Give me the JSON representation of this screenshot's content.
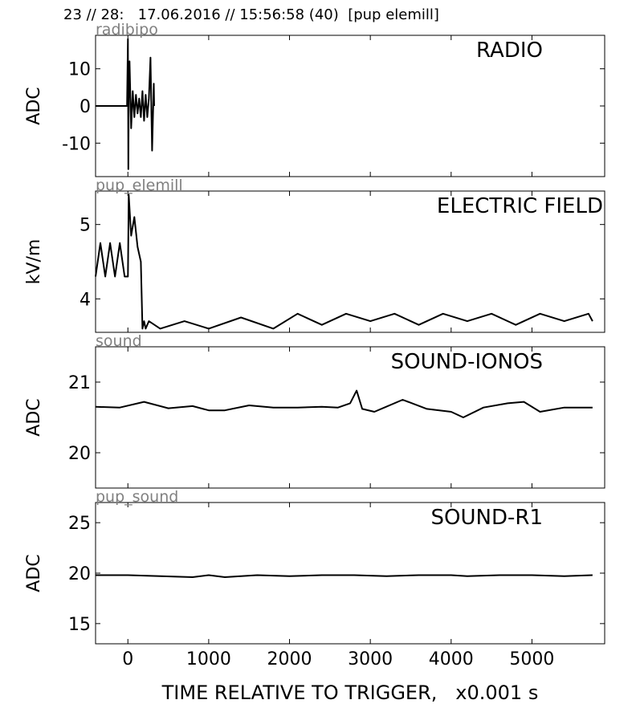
{
  "header": {
    "title": "23 // 28:   17.06.2016 // 15:56:58 (40)  [pup elemill]"
  },
  "chart_data": [
    {
      "type": "line",
      "title": "RADIO",
      "source_label": "radibipo",
      "ylabel": "ADC",
      "ylim": [
        -19,
        19
      ],
      "yticks": [
        -10,
        0,
        10
      ],
      "ytick_labels": [
        "-10",
        "0",
        "10"
      ],
      "series": [
        {
          "x": [
            -400,
            -10,
            0,
            5,
            10,
            20,
            40,
            60,
            80,
            100,
            120,
            140,
            160,
            180,
            200,
            220,
            240,
            260,
            280,
            300,
            320,
            325
          ],
          "y": [
            0,
            0,
            18,
            -17,
            2,
            12,
            -6,
            4,
            -3,
            3,
            -2,
            2,
            -3,
            4,
            -4,
            3,
            -3,
            2,
            13,
            -12,
            6,
            0
          ]
        }
      ]
    },
    {
      "type": "line",
      "title": "ELECTRIC FIELD",
      "source_label": "pup_elemill",
      "ylabel": "kV/m",
      "ylim": [
        3.55,
        5.45
      ],
      "yticks": [
        4,
        5
      ],
      "ytick_labels": [
        "4",
        "5"
      ],
      "series": [
        {
          "x": [
            -400,
            -340,
            -280,
            -220,
            -160,
            -100,
            -40,
            0,
            10,
            40,
            80,
            120,
            160,
            180,
            200,
            220,
            260,
            400,
            700,
            1000,
            1400,
            1800,
            2100,
            2400,
            2700,
            3000,
            3300,
            3600,
            3900,
            4200,
            4500,
            4800,
            5100,
            5400,
            5700,
            5750
          ],
          "y": [
            4.3,
            4.75,
            4.3,
            4.75,
            4.3,
            4.75,
            4.3,
            4.3,
            5.4,
            4.85,
            5.1,
            4.7,
            4.5,
            3.6,
            3.7,
            3.6,
            3.7,
            3.6,
            3.7,
            3.6,
            3.75,
            3.6,
            3.8,
            3.65,
            3.8,
            3.7,
            3.8,
            3.65,
            3.8,
            3.7,
            3.8,
            3.65,
            3.8,
            3.7,
            3.8,
            3.7
          ]
        }
      ]
    },
    {
      "type": "line",
      "title": "SOUND-IONOS",
      "source_label": "sound",
      "ylabel": "ADC",
      "ylim": [
        19.5,
        21.5
      ],
      "yticks": [
        20,
        21
      ],
      "ytick_labels": [
        "20",
        "21"
      ],
      "series": [
        {
          "x": [
            -400,
            -100,
            200,
            500,
            800,
            1000,
            1200,
            1500,
            1800,
            2100,
            2400,
            2600,
            2750,
            2830,
            2900,
            3050,
            3400,
            3700,
            4000,
            4150,
            4400,
            4700,
            4900,
            5100,
            5400,
            5750
          ],
          "y": [
            20.65,
            20.64,
            20.72,
            20.63,
            20.66,
            20.6,
            20.6,
            20.67,
            20.64,
            20.64,
            20.65,
            20.64,
            20.7,
            20.88,
            20.62,
            20.58,
            20.75,
            20.62,
            20.58,
            20.5,
            20.64,
            20.7,
            20.72,
            20.58,
            20.64,
            20.64
          ]
        }
      ]
    },
    {
      "type": "line",
      "title": "SOUND-R1",
      "source_label": "pup_sound",
      "ylabel": "ADC",
      "ylim": [
        13,
        27
      ],
      "yticks": [
        15,
        20,
        25
      ],
      "ytick_labels": [
        "15",
        "20",
        "25"
      ],
      "xticks": [
        0,
        1000,
        2000,
        3000,
        4000,
        5000
      ],
      "xtick_labels": [
        "0",
        "1000",
        "2000",
        "3000",
        "4000",
        "5000"
      ],
      "series": [
        {
          "x": [
            -400,
            0,
            400,
            800,
            1000,
            1200,
            1600,
            2000,
            2400,
            2800,
            3200,
            3600,
            4000,
            4200,
            4600,
            5000,
            5400,
            5750
          ],
          "y": [
            19.8,
            19.8,
            19.7,
            19.6,
            19.8,
            19.6,
            19.8,
            19.7,
            19.8,
            19.8,
            19.7,
            19.8,
            19.8,
            19.7,
            19.8,
            19.8,
            19.7,
            19.8
          ]
        }
      ]
    }
  ],
  "xaxis": {
    "label": "TIME RELATIVE TO TRIGGER,   x0.001 s",
    "xlim": [
      -400,
      5900
    ]
  }
}
